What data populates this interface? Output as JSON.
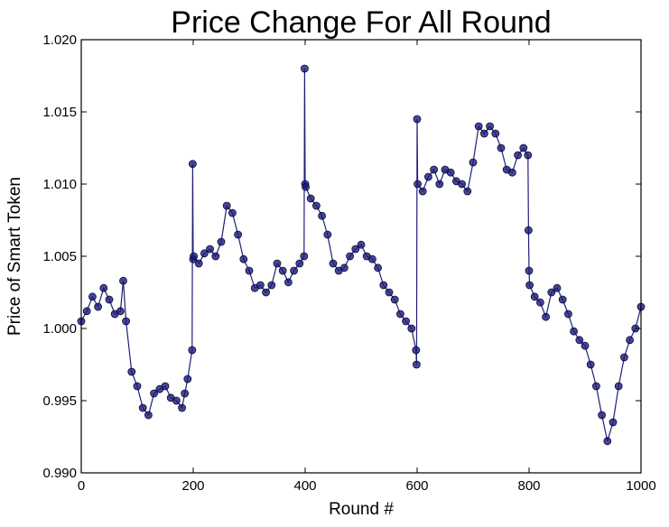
{
  "chart_data": {
    "type": "line",
    "title": "Price Change For All Round",
    "xlabel": "Round #",
    "ylabel": "Price of Smart Token",
    "xlim": [
      0,
      1000
    ],
    "ylim": [
      0.99,
      1.02
    ],
    "x_ticks": [
      "0",
      "200",
      "400",
      "600",
      "800",
      "1000"
    ],
    "y_ticks": [
      "0.990",
      "0.995",
      "1.000",
      "1.005",
      "1.010",
      "1.015",
      "1.020"
    ],
    "grid": false,
    "legend": "none",
    "marker": "circle",
    "colors": {
      "line": "#1f1f7a",
      "marker_fill": "#1a1a80",
      "marker_edge": "#0a0a2e"
    },
    "series": [
      {
        "x": [
          0,
          10,
          20,
          30,
          40,
          50,
          60,
          70,
          75,
          80,
          90,
          100,
          110,
          120,
          130,
          140,
          150,
          160,
          170,
          180,
          185,
          190,
          198,
          199,
          200,
          201,
          210,
          220,
          230,
          240,
          250,
          260,
          270,
          280,
          290,
          300,
          310,
          320,
          330,
          340,
          350,
          360,
          370,
          380,
          390,
          398,
          399,
          400,
          401,
          410,
          420,
          430,
          440,
          450,
          460,
          470,
          480,
          490,
          500,
          510,
          520,
          530,
          540,
          550,
          560,
          570,
          580,
          590,
          598,
          599,
          600,
          601,
          610,
          620,
          630,
          640,
          650,
          660,
          670,
          680,
          690,
          700,
          710,
          720,
          730,
          740,
          750,
          760,
          770,
          780,
          790,
          798,
          799,
          800,
          801,
          810,
          820,
          830,
          840,
          850,
          860,
          870,
          880,
          890,
          900,
          910,
          920,
          930,
          940,
          950,
          960,
          970,
          980,
          990,
          1000
        ],
        "y": [
          1.0005,
          1.0012,
          1.0022,
          1.0015,
          1.0028,
          1.002,
          1.001,
          1.0012,
          1.0033,
          1.0005,
          0.997,
          0.996,
          0.9945,
          0.994,
          0.9955,
          0.9958,
          0.996,
          0.9952,
          0.995,
          0.9945,
          0.9955,
          0.9965,
          0.9985,
          1.0114,
          1.0048,
          1.005,
          1.0045,
          1.0052,
          1.0055,
          1.005,
          1.006,
          1.0085,
          1.008,
          1.0065,
          1.0048,
          1.004,
          1.0028,
          1.003,
          1.0025,
          1.003,
          1.0045,
          1.004,
          1.0032,
          1.004,
          1.0045,
          1.005,
          1.018,
          1.01,
          1.0098,
          1.009,
          1.0085,
          1.0078,
          1.0065,
          1.0045,
          1.004,
          1.0042,
          1.005,
          1.0055,
          1.0058,
          1.005,
          1.0048,
          1.0042,
          1.003,
          1.0025,
          1.002,
          1.001,
          1.0005,
          1.0,
          0.9985,
          0.9975,
          1.0145,
          1.01,
          1.0095,
          1.0105,
          1.011,
          1.01,
          1.011,
          1.0108,
          1.0102,
          1.01,
          1.0095,
          1.0115,
          1.014,
          1.0135,
          1.014,
          1.0135,
          1.0125,
          1.011,
          1.0108,
          1.012,
          1.0125,
          1.012,
          1.0068,
          1.004,
          1.003,
          1.0022,
          1.0018,
          1.0008,
          1.0025,
          1.0028,
          1.002,
          1.001,
          0.9998,
          0.9992,
          0.9988,
          0.9975,
          0.996,
          0.994,
          0.9922,
          0.9935,
          0.996,
          0.998,
          0.9992,
          1.0,
          1.0015
        ]
      }
    ]
  }
}
